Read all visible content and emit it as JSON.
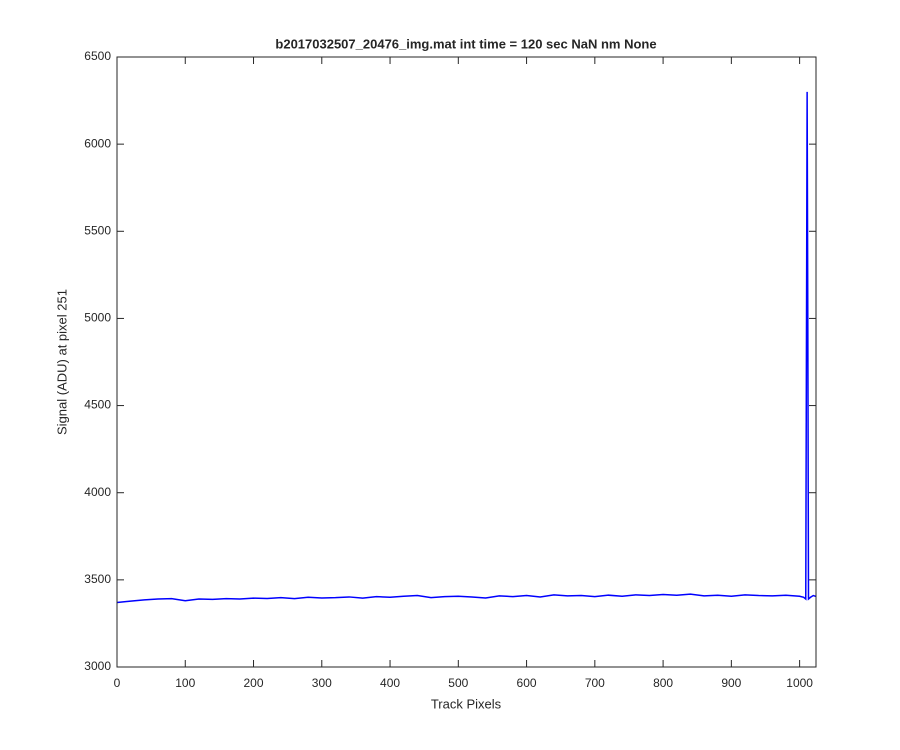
{
  "chart_data": {
    "type": "line",
    "title": "b2017032507_20476_img.mat int time = 120 sec  NaN nm None",
    "x_label": "Track Pixels",
    "y_label": "Signal (ADU) at pixel 251",
    "x": [
      0,
      20,
      40,
      60,
      80,
      100,
      120,
      140,
      160,
      180,
      200,
      220,
      240,
      260,
      280,
      300,
      320,
      340,
      360,
      380,
      400,
      420,
      440,
      460,
      480,
      500,
      520,
      540,
      560,
      580,
      600,
      620,
      640,
      660,
      680,
      700,
      720,
      740,
      760,
      780,
      800,
      820,
      840,
      860,
      880,
      900,
      920,
      940,
      960,
      980,
      1000,
      1006,
      1009,
      1011,
      1012,
      1013,
      1016,
      1020,
      1024
    ],
    "series": [
      {
        "name": "signal",
        "color": "#0000ff",
        "values": [
          3370,
          3378,
          3385,
          3390,
          3392,
          3380,
          3390,
          3388,
          3392,
          3390,
          3395,
          3393,
          3398,
          3392,
          3400,
          3396,
          3398,
          3402,
          3395,
          3404,
          3400,
          3406,
          3410,
          3398,
          3404,
          3406,
          3402,
          3396,
          3408,
          3404,
          3410,
          3402,
          3414,
          3408,
          3410,
          3404,
          3412,
          3406,
          3414,
          3410,
          3416,
          3412,
          3418,
          3408,
          3412,
          3406,
          3414,
          3410,
          3408,
          3412,
          3406,
          3400,
          3390,
          6300,
          5000,
          3390,
          3400,
          3410,
          3405
        ]
      }
    ],
    "xlim": [
      0,
      1024
    ],
    "xticks": [
      0,
      100,
      200,
      300,
      400,
      500,
      600,
      700,
      800,
      900,
      1000
    ],
    "ylim": [
      3000,
      6500
    ],
    "yticks": [
      3000,
      3500,
      4000,
      4500,
      5000,
      5500,
      6000,
      6500
    ],
    "grid": false
  }
}
